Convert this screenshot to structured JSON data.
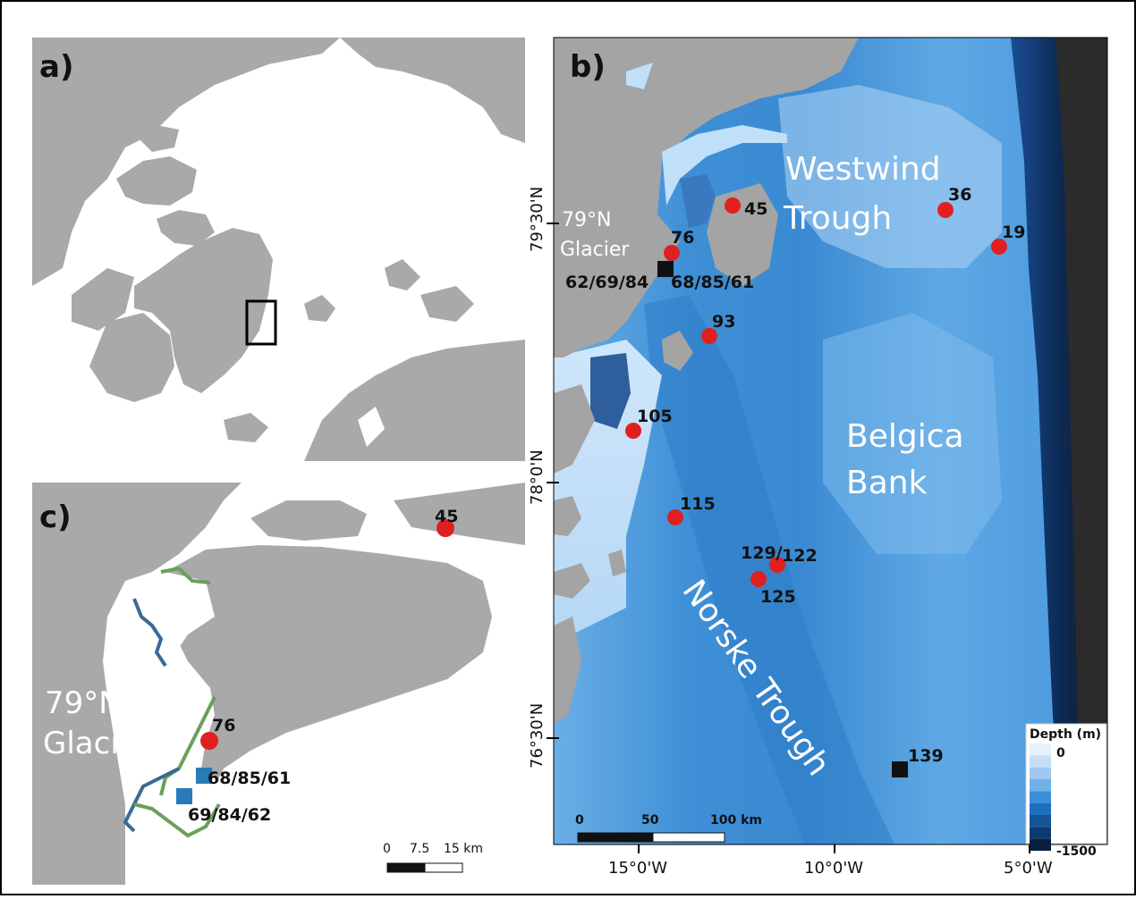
{
  "colors": {
    "land": "#a7a7a7",
    "ocean_panel_a": "#ffffff",
    "ocean_shallow": "#d6ebfb",
    "ocean_mid": "#5aa0e0",
    "ocean_deep": "#1a5aa8",
    "marker_red": "#e02020",
    "marker_square_black": "#111111",
    "marker_square_blue": "#2a7ab8",
    "grounding_line_blue": "#3a6a95",
    "grounding_line_green": "#6aa05a"
  },
  "panel_a": {
    "label": "a)"
  },
  "panel_b": {
    "label": "b)",
    "regions": {
      "westwind_1": "Westwind",
      "westwind_2": "Trough",
      "belgica_1": "Belgica",
      "belgica_2": "Bank",
      "norske": "Norske Trough",
      "glacier_1": "79°N",
      "glacier_2": "Glacier"
    },
    "stations": [
      {
        "label": "45"
      },
      {
        "label": "36"
      },
      {
        "label": "19"
      },
      {
        "label": "76"
      },
      {
        "label": "93"
      },
      {
        "label": "105"
      },
      {
        "label": "115"
      },
      {
        "label": "129/"
      },
      {
        "label": "122"
      },
      {
        "label": "125"
      }
    ],
    "square_stations": [
      {
        "label_left": "62/69/84",
        "label_right": "68/85/61"
      },
      {
        "label_right": "139"
      }
    ],
    "lat_ticks": [
      "79°30'N",
      "78°0'N",
      "76°30'N"
    ],
    "lon_ticks": [
      "15°0'W",
      "10°0'W",
      "5°0'W"
    ],
    "scale_bar": {
      "label_0": "0",
      "label_mid": "50",
      "label_end": "100 km"
    },
    "legend": {
      "title": "Depth (m)",
      "min_label": "0",
      "max_label": "-1500",
      "colors": [
        "#e6f1fb",
        "#c6dff6",
        "#a0c9f0",
        "#6fb0e6",
        "#3a8fd8",
        "#1d6fc0",
        "#145598",
        "#0e3a70",
        "#08203e"
      ]
    }
  },
  "panel_c": {
    "label": "c)",
    "glacier_1": "79°N",
    "glacier_2": "Glacier",
    "stations": [
      {
        "label": "45"
      },
      {
        "label": "76"
      }
    ],
    "square_stations": [
      {
        "label": "68/85/61"
      },
      {
        "label": "69/84/62"
      }
    ],
    "scale_bar": {
      "label_0": "0",
      "label_mid": "7.5",
      "label_end": "15 km"
    }
  }
}
